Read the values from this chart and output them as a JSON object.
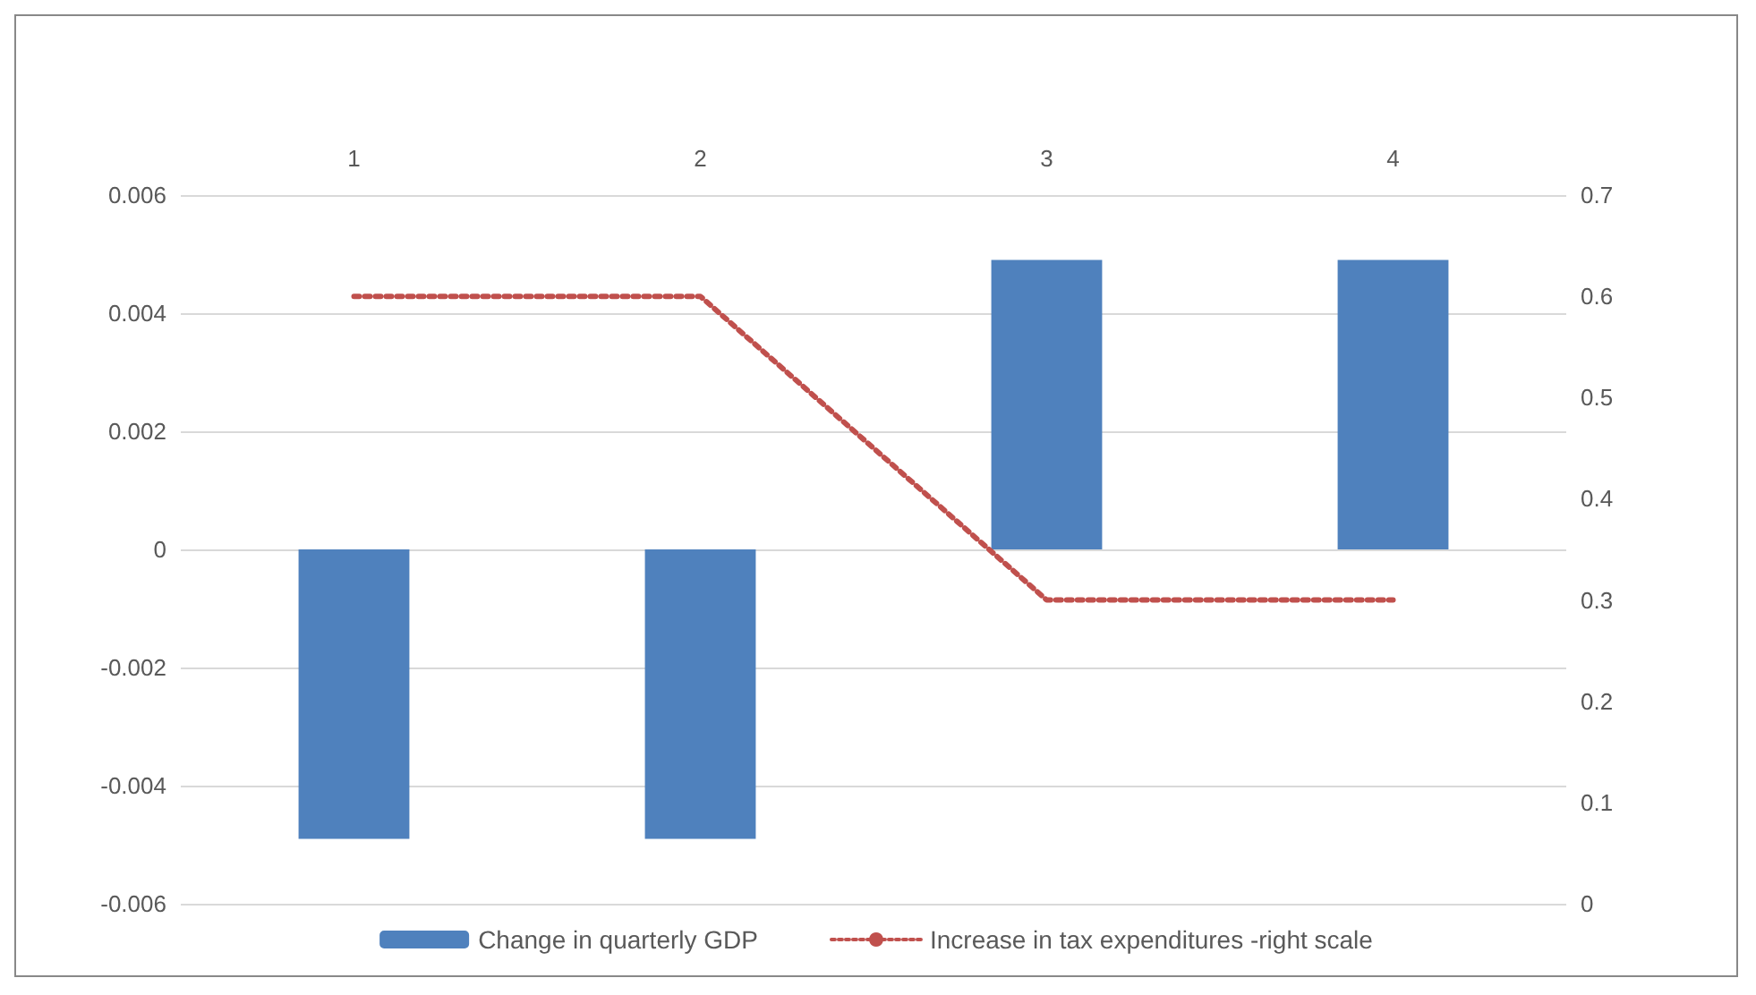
{
  "chart_data": {
    "type": "bar",
    "categories": [
      "1",
      "2",
      "3",
      "4"
    ],
    "series": [
      {
        "name": "Change in quarterly GDP",
        "color": "#4f81bd",
        "values": [
          -0.0049,
          -0.0049,
          0.0049,
          0.0049
        ]
      },
      {
        "name": "Increase in tax expenditures -right scale",
        "type": "line",
        "axis": "y2",
        "color": "#c0504d",
        "line_style": "dotted",
        "marker": "none",
        "values": [
          0.6,
          0.6,
          0.3,
          0.3
        ]
      }
    ],
    "ylim": [
      -0.006,
      0.006
    ],
    "yticks": [
      -0.006,
      -0.004,
      -0.002,
      0,
      0.002,
      0.004,
      0.006
    ],
    "y2lim": [
      0,
      0.7
    ],
    "y2ticks": [
      0,
      0.1,
      0.2,
      0.3,
      0.4,
      0.5,
      0.6,
      0.7
    ],
    "grid": "y",
    "legend": "bottom"
  }
}
